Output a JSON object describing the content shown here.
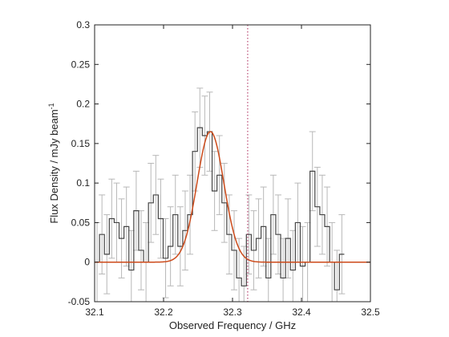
{
  "chart_data": {
    "type": "line",
    "xlabel": "Observed Frequency / GHz",
    "ylabel": {
      "main": "Flux Density / mJy beam",
      "superscript": "-1"
    },
    "xlim": [
      32.1,
      32.5
    ],
    "ylim": [
      -0.05,
      0.3
    ],
    "xticks": [
      "32.1",
      "32.2",
      "32.3",
      "32.4",
      "32.5"
    ],
    "yticks": [
      "-0.05",
      "0",
      "0.05",
      "0.1",
      "0.15",
      "0.2",
      "0.25",
      "0.3"
    ],
    "grid": false,
    "legend": "none",
    "series": [
      {
        "kind": "step-with-errorbars",
        "color": "#444444",
        "errorbar_color": "#b8b8b8",
        "x": [
          32.1,
          32.1071,
          32.1142,
          32.1213,
          32.1284,
          32.1355,
          32.1426,
          32.1497,
          32.1568,
          32.1639,
          32.171,
          32.1781,
          32.1852,
          32.1923,
          32.1994,
          32.2065,
          32.2136,
          32.2207,
          32.2278,
          32.2349,
          32.242,
          32.2491,
          32.2562,
          32.2633,
          32.2704,
          32.2775,
          32.2846,
          32.2917,
          32.2988,
          32.3059,
          32.313,
          32.3201,
          32.3272,
          32.3343,
          32.3414,
          32.3485,
          32.3556,
          32.3627,
          32.3698,
          32.3769,
          32.384,
          32.3911,
          32.3982,
          32.4053,
          32.4124,
          32.4195,
          32.4266,
          32.4337,
          32.4408,
          32.4479,
          32.455
        ],
        "y": [
          0.0,
          0.035,
          0.01,
          0.055,
          0.05,
          0.03,
          0.045,
          -0.01,
          0.065,
          0.015,
          0.0,
          0.075,
          0.085,
          0.055,
          0.005,
          0.02,
          0.06,
          0.02,
          0.04,
          0.06,
          0.14,
          0.17,
          0.16,
          0.165,
          0.09,
          0.11,
          0.075,
          0.035,
          0.015,
          -0.02,
          -0.03,
          0.035,
          0.015,
          0.03,
          0.045,
          -0.02,
          0.06,
          0.035,
          -0.02,
          0.03,
          -0.01,
          0.05,
          -0.005,
          0.0,
          0.115,
          0.07,
          0.06,
          0.045,
          0.0,
          -0.035,
          0.01
        ],
        "yerr": [
          0.05,
          0.05,
          0.05,
          0.05,
          0.05,
          0.05,
          0.05,
          0.05,
          0.05,
          0.05,
          0.05,
          0.05,
          0.05,
          0.05,
          0.05,
          0.05,
          0.05,
          0.05,
          0.05,
          0.05,
          0.05,
          0.05,
          0.05,
          0.05,
          0.05,
          0.05,
          0.05,
          0.05,
          0.05,
          0.05,
          0.05,
          0.05,
          0.05,
          0.05,
          0.05,
          0.05,
          0.05,
          0.05,
          0.05,
          0.05,
          0.05,
          0.05,
          0.05,
          0.05,
          0.05,
          0.05,
          0.05,
          0.05,
          0.05,
          0.05,
          0.05
        ]
      },
      {
        "kind": "gaussian-fit",
        "color": "#cc4a1a",
        "amplitude": 0.165,
        "center": 32.268,
        "sigma": 0.0195,
        "baseline": 0.0
      }
    ],
    "vline": {
      "x": 32.322,
      "color": "#aa2255",
      "style": "dotted"
    }
  }
}
